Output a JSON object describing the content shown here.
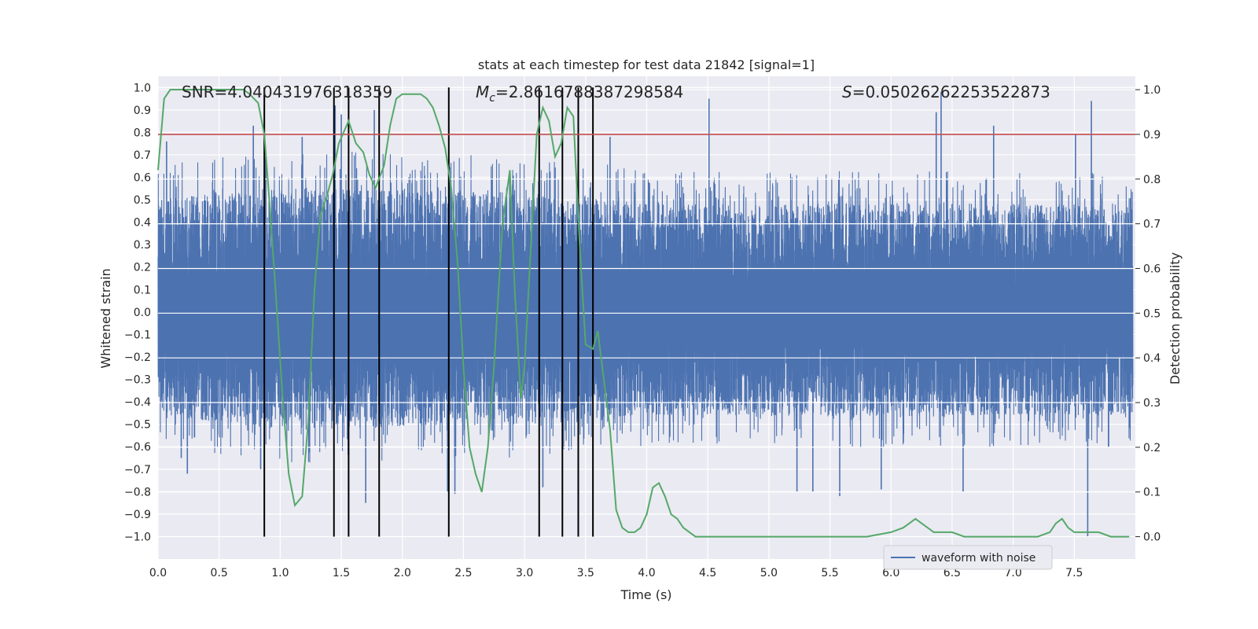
{
  "chart_data": {
    "type": "line",
    "title": "stats at each timestep for test data 21842 [signal=1]",
    "xlabel": "Time (s)",
    "ylabel": "Whitened strain",
    "y2label": "Detection probability",
    "xlim": [
      0.0,
      8.0
    ],
    "ylim": [
      -1.1,
      1.05
    ],
    "y2lim": [
      -0.05,
      1.03
    ],
    "xticks": [
      "0.0",
      "0.5",
      "1.0",
      "1.5",
      "2.0",
      "2.5",
      "3.0",
      "3.5",
      "4.0",
      "4.5",
      "5.0",
      "5.5",
      "6.0",
      "6.5",
      "7.0",
      "7.5"
    ],
    "yticks": [
      "1.0",
      "0.9",
      "0.8",
      "0.7",
      "0.6",
      "0.5",
      "0.4",
      "0.3",
      "0.2",
      "0.1",
      "0.0",
      "-0.1",
      "-0.2",
      "-0.3",
      "-0.4",
      "-0.5",
      "-0.6",
      "-0.7",
      "-0.8",
      "-0.9",
      "-1.0"
    ],
    "y2ticks": [
      "1.0",
      "0.9",
      "0.8",
      "0.7",
      "0.6",
      "0.5",
      "0.4",
      "0.3",
      "0.2",
      "0.1",
      "0.0"
    ],
    "annotations": {
      "snr": "SNR=4.040431976318359",
      "mc_symbol": "M",
      "mc_sub": "c",
      "mc_value": "=2.8616788387298584",
      "s_symbol": "S",
      "s_value": "=0.05026262253522873"
    },
    "legend": {
      "label": "waveform with noise",
      "placement": "lower-right"
    },
    "threshold": {
      "axis": "y2",
      "value": 0.9,
      "color": "#c44e52"
    },
    "vlines": {
      "x": [
        0.87,
        1.44,
        1.56,
        1.81,
        2.38,
        3.12,
        3.31,
        3.44,
        3.56
      ],
      "y_from": -1.0,
      "y_to": 1.0,
      "color": "#000000"
    },
    "series": [
      {
        "name": "waveform with noise",
        "axis": "y",
        "color": "#4c72b0",
        "kind": "noisy-waveform",
        "n_samples": 8000,
        "envelope": {
          "x": [
            0.0,
            0.3,
            0.9,
            1.5,
            2.5,
            3.0,
            3.5,
            4.0,
            5.0,
            6.0,
            7.0,
            8.0
          ],
          "upper": [
            0.5,
            0.52,
            0.55,
            0.55,
            0.54,
            0.52,
            0.52,
            0.48,
            0.48,
            0.49,
            0.48,
            0.48
          ],
          "lower": [
            -0.45,
            -0.48,
            -0.52,
            -0.52,
            -0.5,
            -0.5,
            -0.48,
            -0.46,
            -0.46,
            -0.47,
            -0.46,
            -0.46
          ]
        },
        "spikes": [
          {
            "x": 0.07,
            "y": 0.76
          },
          {
            "x": 0.19,
            "y": -0.65
          },
          {
            "x": 0.24,
            "y": -0.72
          },
          {
            "x": 0.78,
            "y": 0.83
          },
          {
            "x": 0.84,
            "y": -0.7
          },
          {
            "x": 1.18,
            "y": 0.78
          },
          {
            "x": 1.45,
            "y": 0.92
          },
          {
            "x": 1.5,
            "y": 0.88
          },
          {
            "x": 1.7,
            "y": -0.85
          },
          {
            "x": 1.77,
            "y": 0.9
          },
          {
            "x": 2.37,
            "y": -0.8
          },
          {
            "x": 2.43,
            "y": -0.81
          },
          {
            "x": 3.15,
            "y": -0.78
          },
          {
            "x": 3.7,
            "y": 0.78
          },
          {
            "x": 4.51,
            "y": 0.95
          },
          {
            "x": 5.23,
            "y": -0.8
          },
          {
            "x": 5.36,
            "y": -0.8
          },
          {
            "x": 5.58,
            "y": -0.82
          },
          {
            "x": 5.92,
            "y": -0.79
          },
          {
            "x": 6.37,
            "y": 0.89
          },
          {
            "x": 6.41,
            "y": 0.98
          },
          {
            "x": 6.59,
            "y": -0.8
          },
          {
            "x": 6.84,
            "y": 0.83
          },
          {
            "x": 7.51,
            "y": 0.79
          },
          {
            "x": 7.61,
            "y": -1.0
          },
          {
            "x": 7.64,
            "y": 0.94
          },
          {
            "x": 7.78,
            "y": -0.6
          }
        ]
      },
      {
        "name": "detection probability",
        "axis": "y2",
        "color": "#55a868",
        "x": [
          0.0,
          0.05,
          0.1,
          0.2,
          0.3,
          0.4,
          0.5,
          0.6,
          0.7,
          0.75,
          0.82,
          0.87,
          0.92,
          0.97,
          1.02,
          1.07,
          1.12,
          1.18,
          1.23,
          1.28,
          1.33,
          1.38,
          1.43,
          1.48,
          1.56,
          1.62,
          1.68,
          1.73,
          1.78,
          1.85,
          1.9,
          1.95,
          2.0,
          2.05,
          2.1,
          2.15,
          2.2,
          2.25,
          2.3,
          2.35,
          2.4,
          2.45,
          2.5,
          2.55,
          2.6,
          2.65,
          2.7,
          2.75,
          2.82,
          2.88,
          2.92,
          2.97,
          3.0,
          3.05,
          3.1,
          3.15,
          3.2,
          3.25,
          3.3,
          3.35,
          3.4,
          3.45,
          3.5,
          3.56,
          3.6,
          3.65,
          3.7,
          3.75,
          3.8,
          3.85,
          3.9,
          3.95,
          4.0,
          4.05,
          4.1,
          4.15,
          4.2,
          4.25,
          4.3,
          4.35,
          4.4,
          4.45,
          4.5,
          4.55,
          4.6,
          4.65,
          4.7,
          4.8,
          4.9,
          5.0,
          5.2,
          5.4,
          5.6,
          5.8,
          6.0,
          6.1,
          6.15,
          6.2,
          6.25,
          6.3,
          6.35,
          6.4,
          6.5,
          6.6,
          6.7,
          7.0,
          7.2,
          7.3,
          7.35,
          7.4,
          7.45,
          7.5,
          7.55,
          7.6,
          7.7,
          7.8,
          7.95
        ],
        "values": [
          0.82,
          0.98,
          1.0,
          1.0,
          1.0,
          1.0,
          1.0,
          1.0,
          1.0,
          0.99,
          0.97,
          0.9,
          0.72,
          0.52,
          0.31,
          0.14,
          0.07,
          0.09,
          0.26,
          0.55,
          0.72,
          0.76,
          0.81,
          0.88,
          0.93,
          0.88,
          0.86,
          0.81,
          0.78,
          0.83,
          0.92,
          0.98,
          0.99,
          0.99,
          0.99,
          0.99,
          0.98,
          0.96,
          0.92,
          0.87,
          0.78,
          0.62,
          0.38,
          0.2,
          0.14,
          0.1,
          0.2,
          0.38,
          0.7,
          0.82,
          0.55,
          0.31,
          0.38,
          0.64,
          0.9,
          0.96,
          0.93,
          0.85,
          0.88,
          0.96,
          0.94,
          0.66,
          0.43,
          0.42,
          0.46,
          0.35,
          0.24,
          0.06,
          0.02,
          0.01,
          0.01,
          0.02,
          0.05,
          0.11,
          0.12,
          0.09,
          0.05,
          0.04,
          0.02,
          0.01,
          0.0,
          0.0,
          0.0,
          0.0,
          0.0,
          0.0,
          0.0,
          0.0,
          0.0,
          0.0,
          0.0,
          0.0,
          0.0,
          0.0,
          0.01,
          0.02,
          0.03,
          0.04,
          0.03,
          0.02,
          0.01,
          0.01,
          0.01,
          0.0,
          0.0,
          0.0,
          0.0,
          0.01,
          0.03,
          0.04,
          0.02,
          0.01,
          0.01,
          0.01,
          0.01,
          0.0,
          0.0
        ]
      }
    ]
  }
}
